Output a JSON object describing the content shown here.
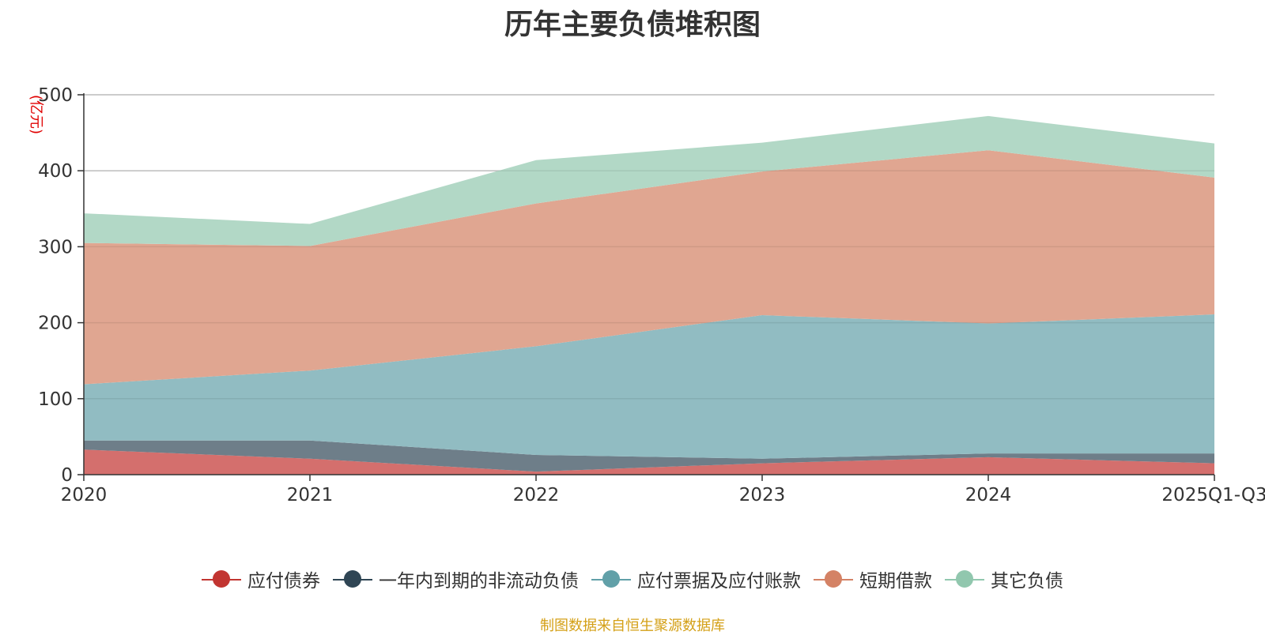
{
  "chart_data": {
    "type": "area",
    "stacked": true,
    "title": "历年主要负债堆积图",
    "ylabel": "(亿元)",
    "xlabel": "",
    "categories": [
      "2020",
      "2021",
      "2022",
      "2023",
      "2024",
      "2025Q1-Q3"
    ],
    "ylim": [
      0,
      500
    ],
    "yticks": [
      0,
      100,
      200,
      300,
      400,
      500
    ],
    "grid": true,
    "legend_position": "bottom-center",
    "series": [
      {
        "name": "应付债券",
        "color": "#c23531",
        "fill": "#d46f6d",
        "values": [
          33,
          21,
          4,
          15,
          23,
          15
        ]
      },
      {
        "name": "一年内到期的非流动负债",
        "color": "#2f4554",
        "fill": "#6e7e89",
        "values": [
          12,
          24,
          22,
          6,
          5,
          13
        ]
      },
      {
        "name": "应付票据及应付账款",
        "color": "#61a0a8",
        "fill": "#91bcc2",
        "values": [
          74,
          92,
          143,
          189,
          171,
          183
        ]
      },
      {
        "name": "短期借款",
        "color": "#d48265",
        "fill": "#e0a691",
        "values": [
          186,
          164,
          188,
          189,
          228,
          180
        ]
      },
      {
        "name": "其它负债",
        "color": "#91c7ae",
        "fill": "#b2d8c6",
        "values": [
          39,
          29,
          57,
          38,
          45,
          45
        ]
      }
    ]
  },
  "source_text": "制图数据来自恒生聚源数据库"
}
